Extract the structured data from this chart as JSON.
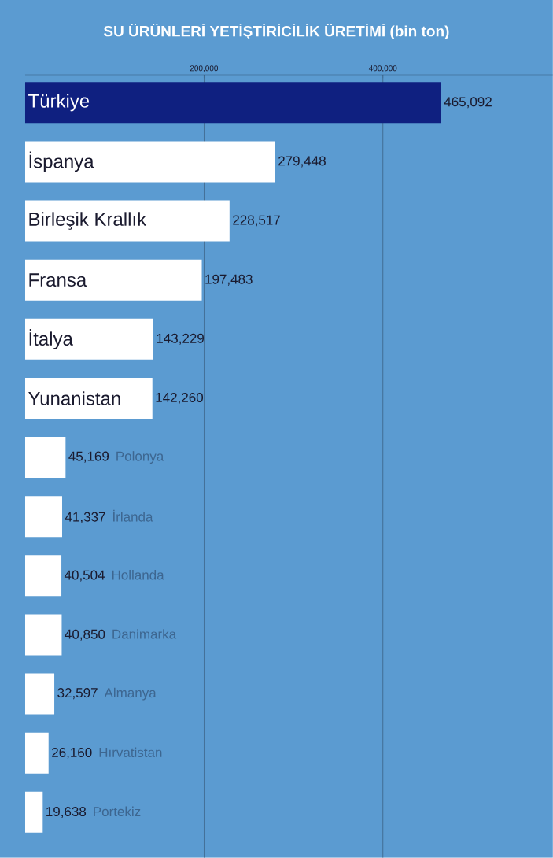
{
  "chart_data": {
    "type": "bar",
    "orientation": "horizontal",
    "title": "SU ÜRÜNLERİ YETİŞTİRİCİLİK ÜRETİMİ (bin ton)",
    "categories": [
      "Türkiye",
      "İspanya",
      "Birleşik Krallık",
      "Fransa",
      "İtalya",
      "Yunanistan",
      "Polonya",
      "İrlanda",
      "Hollanda",
      "Danimarka",
      "Almanya",
      "Hırvatistan",
      "Portekiz"
    ],
    "values": [
      465092,
      279448,
      228517,
      197483,
      143229,
      142260,
      45169,
      41337,
      40504,
      40850,
      32597,
      26160,
      19638
    ],
    "colors": [
      "#0f2080",
      "#ffffff",
      "#ffffff",
      "#ffffff",
      "#ffffff",
      "#ffffff",
      "#ffffff",
      "#ffffff",
      "#ffffff",
      "#ffffff",
      "#ffffff",
      "#ffffff",
      "#ffffff"
    ],
    "xlim": [
      0,
      590000
    ],
    "xticks": [
      {
        "value": 200000,
        "label": "200,000"
      },
      {
        "value": 400000,
        "label": "400,000"
      }
    ],
    "value_labels": [
      "465,092",
      "279,448",
      "228,517",
      "197,483",
      "143,229",
      "142,260",
      "45,169",
      "41,337",
      "40,504",
      "40,850",
      "32,597",
      "26,160",
      "19,638"
    ],
    "grid": "x"
  }
}
